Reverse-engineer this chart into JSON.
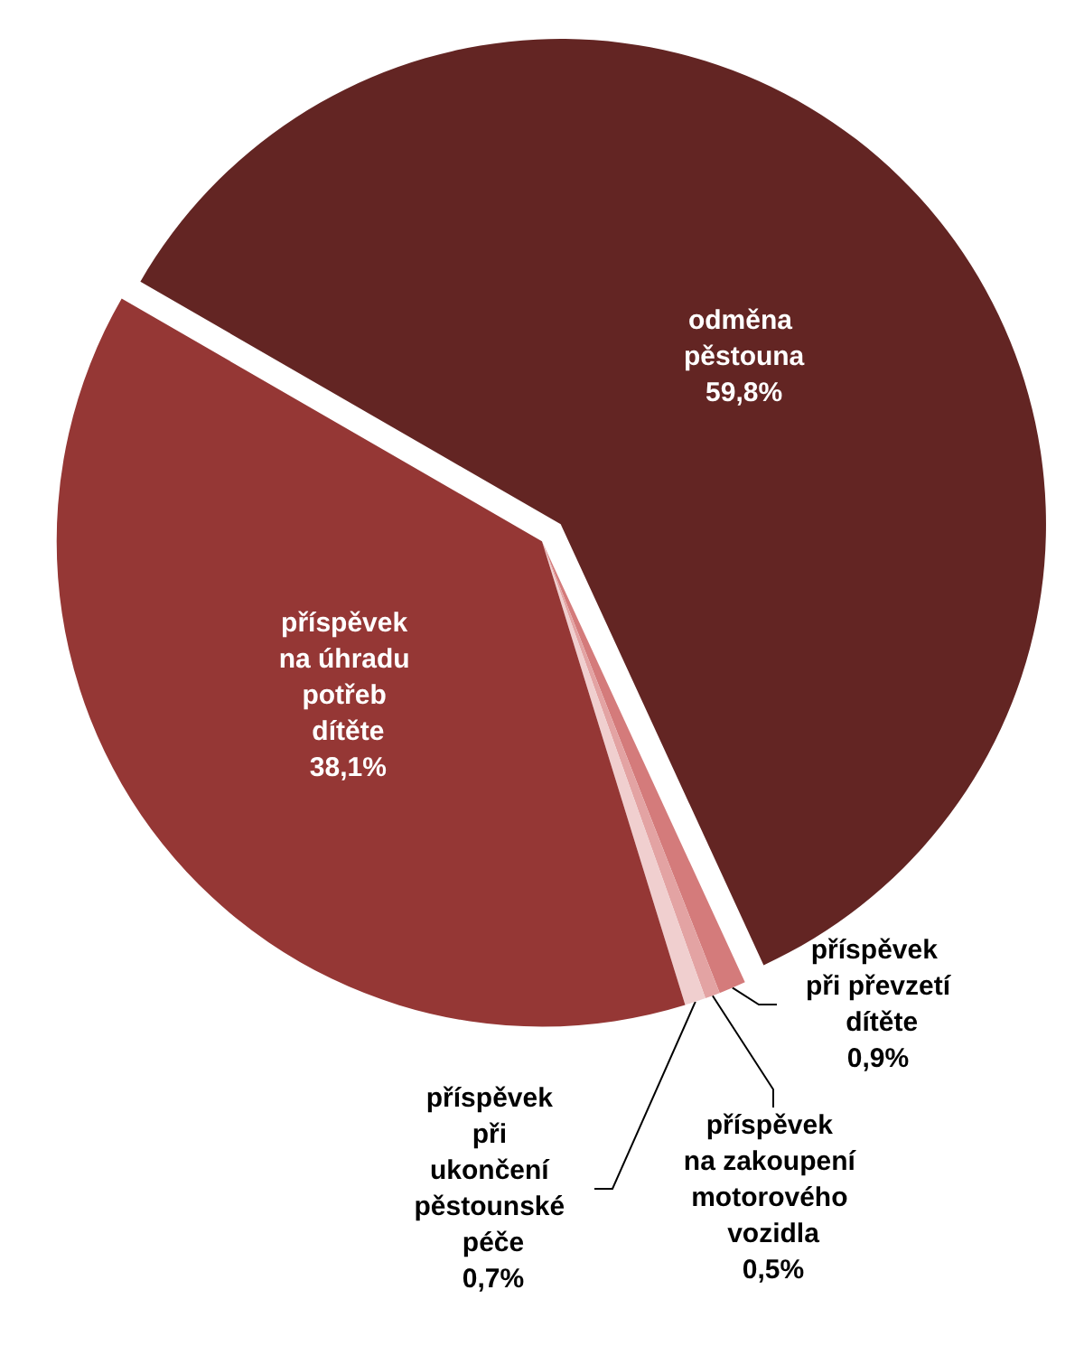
{
  "chart_data": {
    "type": "pie",
    "categories": [
      "odměna pěstouna",
      "příspěvek při převzetí dítěte",
      "příspěvek na zakoupení motorového vozidla",
      "příspěvek při ukončení pěstounské péče",
      "příspěvek na úhradu potřeb dítěte"
    ],
    "values": [
      59.8,
      0.9,
      0.5,
      0.7,
      38.1
    ],
    "value_labels": [
      "59,8%",
      "0,9%",
      "0,5%",
      "0,7%",
      "38,1%"
    ],
    "colors": [
      "#632523",
      "#d47b7b",
      "#e3a3a3",
      "#f0cfcf",
      "#953735"
    ],
    "legend": false
  }
}
